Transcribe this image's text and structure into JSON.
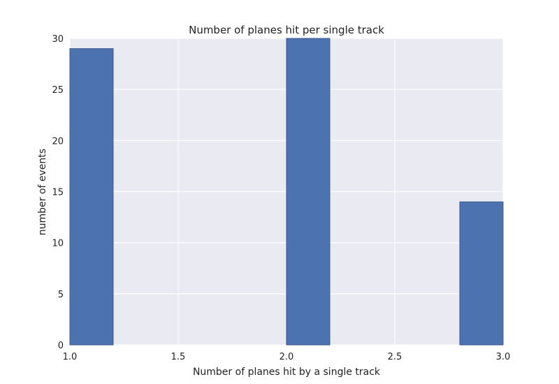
{
  "chart_data": {
    "type": "bar",
    "title": "Number of planes hit per single track",
    "xlabel": "Number of planes hit by a single track",
    "ylabel": "number of events",
    "xlim": [
      1.0,
      3.0
    ],
    "ylim": [
      0,
      30
    ],
    "xticks": [
      "1.0",
      "1.5",
      "2.0",
      "2.5",
      "3.0"
    ],
    "yticks": [
      "0",
      "5",
      "10",
      "15",
      "20",
      "25",
      "30"
    ],
    "grid": true,
    "bins": [
      {
        "x_start": 1.0,
        "x_end": 1.2,
        "value": 29
      },
      {
        "x_start": 2.0,
        "x_end": 2.2,
        "value": 30
      },
      {
        "x_start": 2.8,
        "x_end": 3.0,
        "value": 14
      }
    ],
    "colors": {
      "bar_fill": "#4c72b0",
      "bar_edge": "#3a5a8c",
      "plot_background": "#eaeaf2",
      "grid": "#ffffff"
    }
  }
}
